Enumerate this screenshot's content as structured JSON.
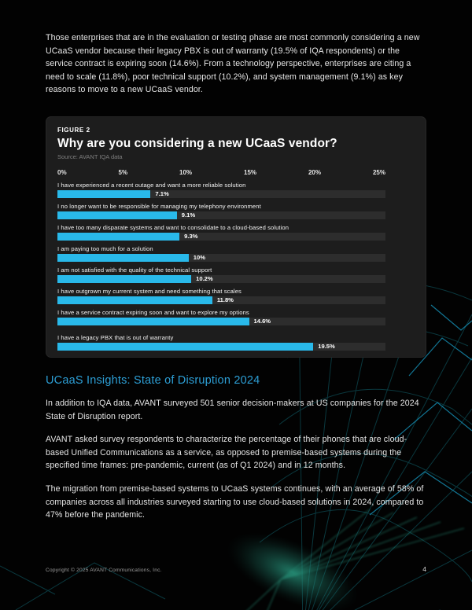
{
  "page": {
    "intro_paragraph": "Those enterprises that are in the evaluation or testing phase are most commonly considering a new UCaaS vendor because their legacy PBX is out of warranty (19.5% of IQA respondents) or the service contract is expiring soon (14.6%). From a technology perspective, enterprises are citing a need to scale (11.8%), poor technical support (10.2%), and system management (9.1%) as key reasons to move to a new UCaaS vendor.",
    "footer_copyright": "Copyright © 2025 AVANT Communications, Inc.",
    "page_number": "4"
  },
  "figure": {
    "tag": "FIGURE 2",
    "title": "Why are you considering a new UCaaS vendor?",
    "source": "Source: AVANT IQA data"
  },
  "chart_data": {
    "type": "bar",
    "orientation": "horizontal",
    "title": "Why are you considering a new UCaaS vendor?",
    "source": "AVANT IQA data",
    "xlim": [
      0,
      25
    ],
    "axis_ticks": [
      "0%",
      "5%",
      "10%",
      "15%",
      "20%",
      "25%"
    ],
    "grid": false,
    "legend": false,
    "bar_color": "#29b9ea",
    "track_color": "#2d2d2d",
    "categories": [
      "I have experienced a recent outage and want a more reliable solution",
      "I no longer want to be responsible for managing my telephony environment",
      "I have too many disparate systems and want to consolidate to a cloud-based solution",
      "I am paying too much for a solution",
      "I am not satisfied with the quality of the technical support",
      "I have outgrown my current system and need something that scales",
      "I have a service contract expiring soon and want to explore my options",
      "I have a legacy PBX that is out of warranty"
    ],
    "values": [
      7.1,
      9.1,
      9.3,
      10,
      10.2,
      11.8,
      14.6,
      19.5
    ],
    "value_labels": [
      "7.1%",
      "9.1%",
      "9.3%",
      "10%",
      "10.2%",
      "11.8%",
      "14.6%",
      "19.5%"
    ]
  },
  "section": {
    "heading": "UCaaS Insights: State of Disruption 2024",
    "heading_color": "#2d9fd6",
    "paragraphs": [
      "In addition to IQA data, AVANT surveyed 501 senior decision-makers at US companies for the 2024 State of Disruption report.",
      "AVANT asked survey respondents to characterize the percentage of their phones that are cloud-based Unified Communications as a service, as opposed to premise-based systems during the specified time frames: pre-pandemic, current (as of Q1 2024) and in 12 months.",
      "The migration from premise-based systems to UCaaS systems continues, with an average of 58% of companies across all industries surveyed starting to use cloud-based solutions in 2024, compared to 47% before the pandemic."
    ]
  }
}
